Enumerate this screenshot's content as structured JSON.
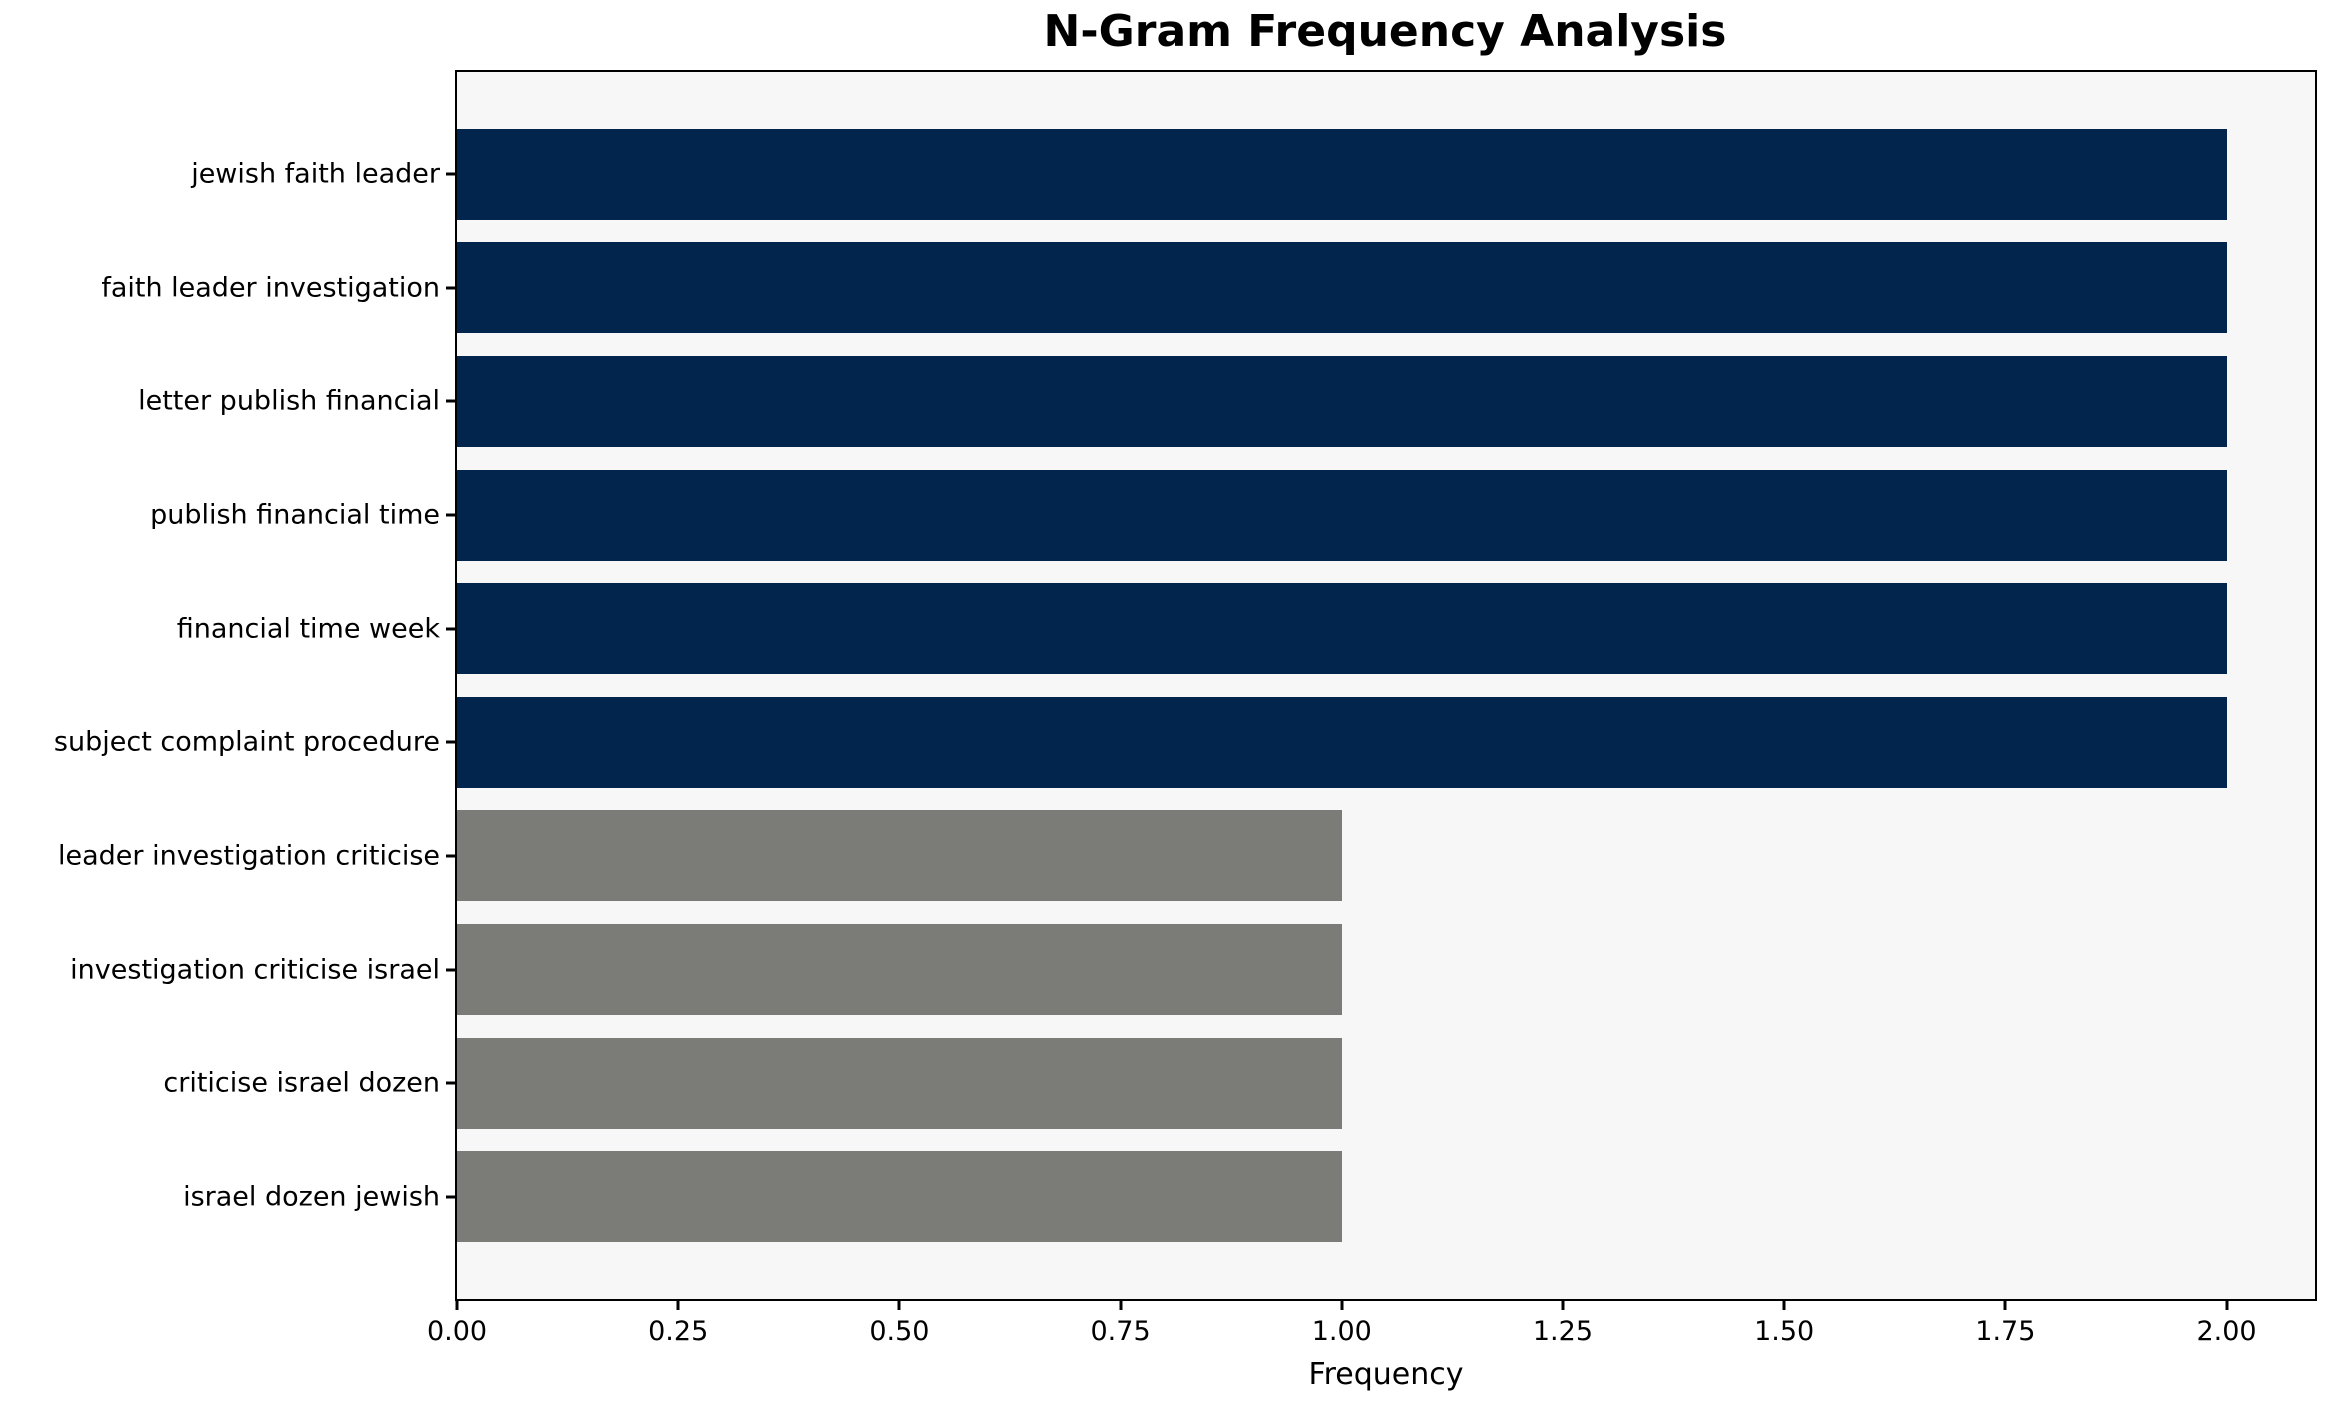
{
  "chart_data": {
    "type": "bar",
    "orientation": "horizontal",
    "title": "N-Gram Frequency Analysis",
    "xlabel": "Frequency",
    "ylabel": "",
    "categories": [
      "jewish faith leader",
      "faith leader investigation",
      "letter publish financial",
      "publish financial time",
      "financial time week",
      "subject complaint procedure",
      "leader investigation criticise",
      "investigation criticise israel",
      "criticise israel dozen",
      "israel dozen jewish"
    ],
    "values": [
      2,
      2,
      2,
      2,
      2,
      2,
      1,
      1,
      1,
      1
    ],
    "bar_colors": [
      "#02254e",
      "#02254e",
      "#02254e",
      "#02254e",
      "#02254e",
      "#02254e",
      "#7b7b78",
      "#7b7b78",
      "#7b7b78",
      "#7b7b78"
    ],
    "xlim": [
      0,
      2.1
    ],
    "xtick_values": [
      0,
      0.25,
      0.5,
      0.75,
      1.0,
      1.25,
      1.5,
      1.75,
      2.0
    ],
    "xtick_labels": [
      "0.00",
      "0.25",
      "0.50",
      "0.75",
      "1.00",
      "1.25",
      "1.50",
      "1.75",
      "2.00"
    ],
    "bar_rel_height": 0.8,
    "grid": false,
    "legend": null,
    "colors": {
      "bar_high_freq": "#02254e",
      "bar_low_freq": "#7b7b78",
      "plot_background": "#f7f7f7",
      "figure_background": "#ffffff",
      "spine": "#000000",
      "text": "#000000"
    }
  }
}
